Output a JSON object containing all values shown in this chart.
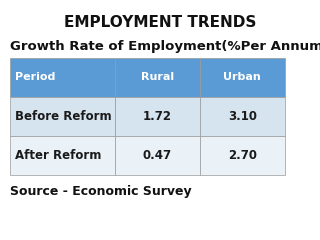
{
  "title": "EMPLOYMENT TRENDS",
  "subtitle": "Growth Rate of Employment(%Per Annum)",
  "source": "Source - Economic Survey",
  "col_headers": [
    "Period",
    "Rural",
    "Urban"
  ],
  "rows": [
    [
      "Before Reform",
      "1.72",
      "3.10"
    ],
    [
      "After Reform",
      "0.47",
      "2.70"
    ]
  ],
  "header_bg": "#5B9BD5",
  "header_text_color": "#FFFFFF",
  "row1_bg": "#D6E4F0",
  "row2_bg": "#EAF2F8",
  "cell_text_color": "#1a1a1a",
  "background_color": "#FFFFFF",
  "title_fontsize": 11,
  "subtitle_fontsize": 9.5,
  "source_fontsize": 9
}
